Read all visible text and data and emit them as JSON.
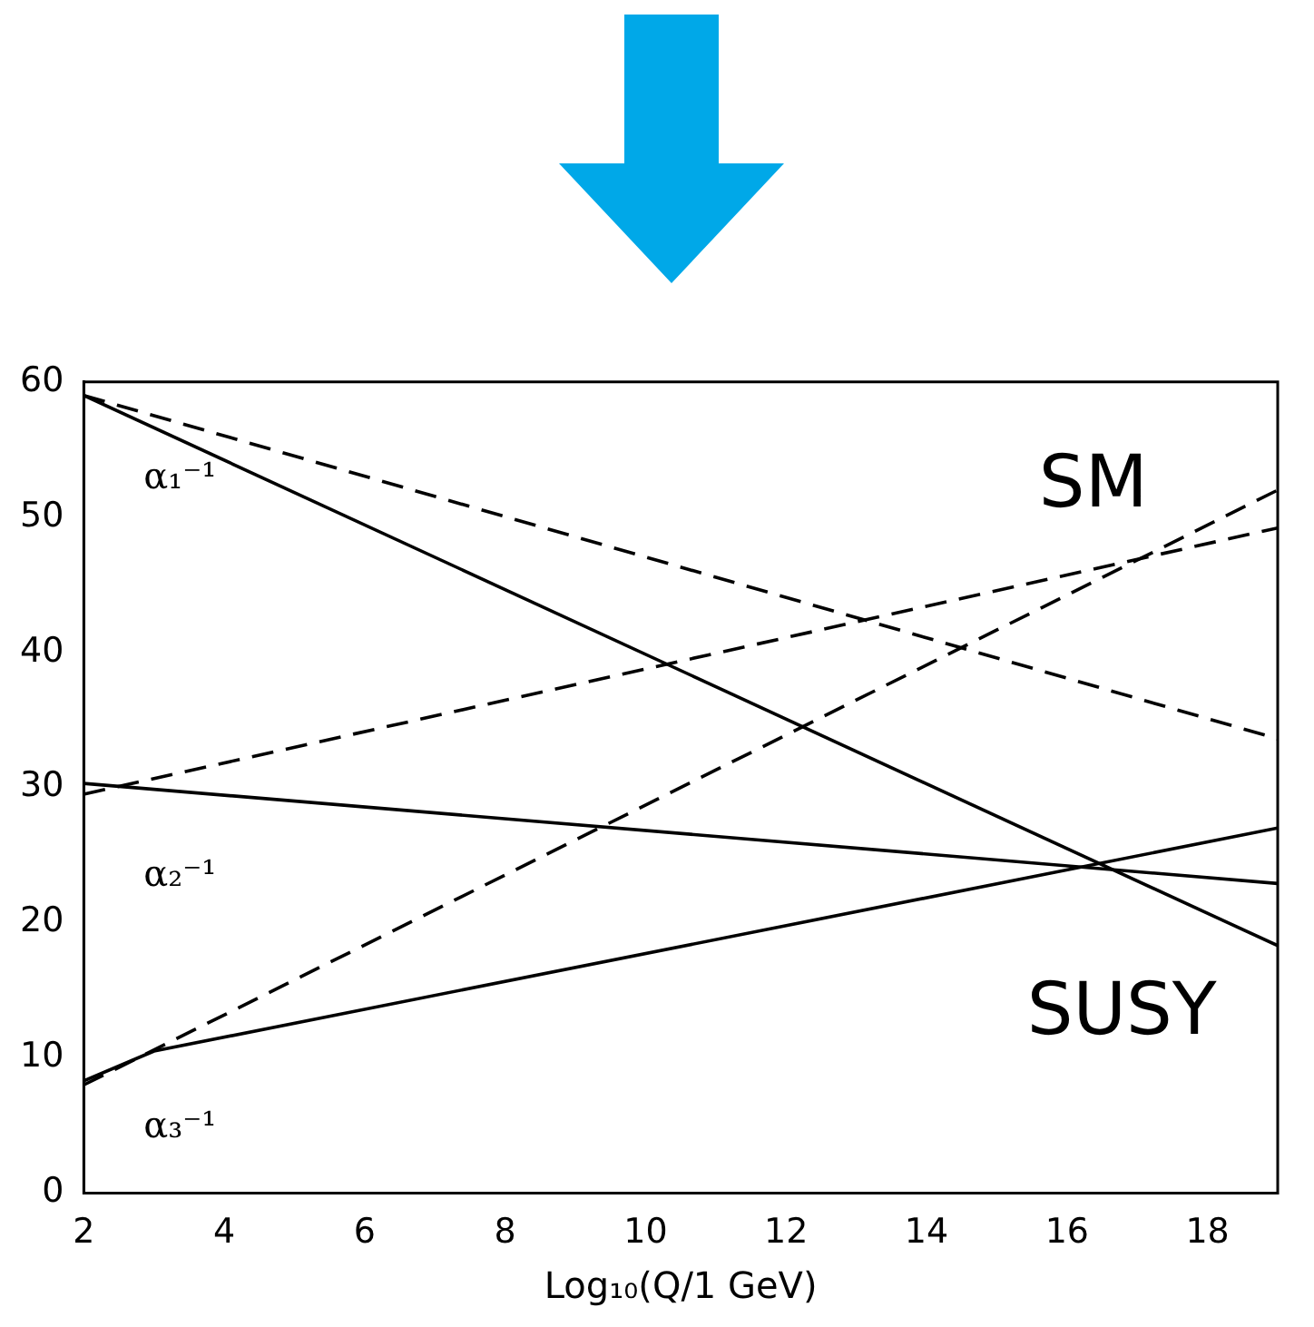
{
  "chart_data": {
    "type": "line",
    "xlabel": "Log₁₀(Q/1 GeV)",
    "xlim": [
      2,
      19
    ],
    "xticks": [
      2,
      4,
      6,
      8,
      10,
      12,
      14,
      16,
      18
    ],
    "ylim": [
      0,
      60
    ],
    "yticks": [
      0,
      10,
      20,
      30,
      40,
      50,
      60
    ],
    "marker": "none",
    "series": [
      {
        "color": "#000000",
        "line_style": "dashed",
        "x": [
          2,
          19
        ],
        "values": [
          59,
          33.6
        ]
      },
      {
        "color": "#000000",
        "line_style": "solid",
        "x": [
          2,
          19
        ],
        "values": [
          59,
          18.3
        ]
      },
      {
        "color": "#000000",
        "line_style": "dashed",
        "x": [
          2,
          19
        ],
        "values": [
          29.5,
          49.2
        ]
      },
      {
        "color": "#000000",
        "line_style": "solid",
        "x": [
          2,
          19
        ],
        "values": [
          30.3,
          22.9
        ]
      },
      {
        "color": "#000000",
        "line_style": "dashed",
        "x": [
          2,
          19
        ],
        "values": [
          8,
          52
        ]
      },
      {
        "color": "#000000",
        "line_style": "solid",
        "x": [
          2,
          3,
          19
        ],
        "values": [
          8.3,
          10.5,
          27
        ]
      }
    ],
    "annotations": [
      "α₁⁻¹",
      "α₂⁻¹",
      "α₃⁻¹",
      "SM",
      "SUSY"
    ]
  }
}
